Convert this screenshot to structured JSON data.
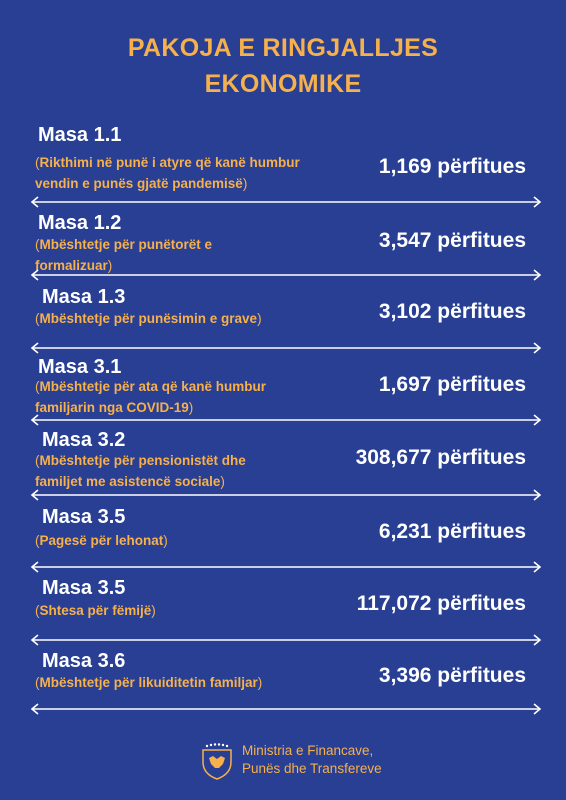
{
  "title_line1": "PAKOJA E RINGJALLJES",
  "title_line2": "EKONOMIKE",
  "items": [
    {
      "masa": "Masa 1.1",
      "desc1": "Rikthimi në punë i atyre që kanë humbur",
      "desc2": "vendin e punës gjatë pandemisë",
      "count": "1,169 përfitues"
    },
    {
      "masa": "Masa 1.2",
      "desc1": "Mbështetje për punëtorët e",
      "desc2": "formalizuar",
      "count": "3,547 përfitues"
    },
    {
      "masa": "Masa 1.3",
      "desc1": "Mbështetje për punësimin e grave",
      "desc2": "",
      "count": "3,102 përfitues"
    },
    {
      "masa": "Masa 3.1",
      "desc1": "Mbështetje për ata që kanë humbur",
      "desc2": "familjarin nga COVID-19",
      "count": "1,697 përfitues"
    },
    {
      "masa": "Masa 3.2",
      "desc1": "Mbështetje për pensionistët dhe",
      "desc2": "familjet me asistencë sociale",
      "count": "308,677 përfitues"
    },
    {
      "masa": "Masa 3.5",
      "desc1": "Pagesë për lehonat",
      "desc2": "",
      "count": "6,231 përfitues"
    },
    {
      "masa": "Masa 3.5",
      "desc1": "Shtesa për fëmijë",
      "desc2": "",
      "count": "117,072  përfitues"
    },
    {
      "masa": "Masa 3.6",
      "desc1": "Mbështetje për likuiditetin familjar",
      "desc2": "",
      "count": "3,396 përfitues"
    }
  ],
  "footer": {
    "line1": "Ministria e Financave,",
    "line2": "Punës dhe Transfereve"
  },
  "colors": {
    "background": "#283f93",
    "accent": "#f6b04c",
    "text": "#ffffff"
  }
}
